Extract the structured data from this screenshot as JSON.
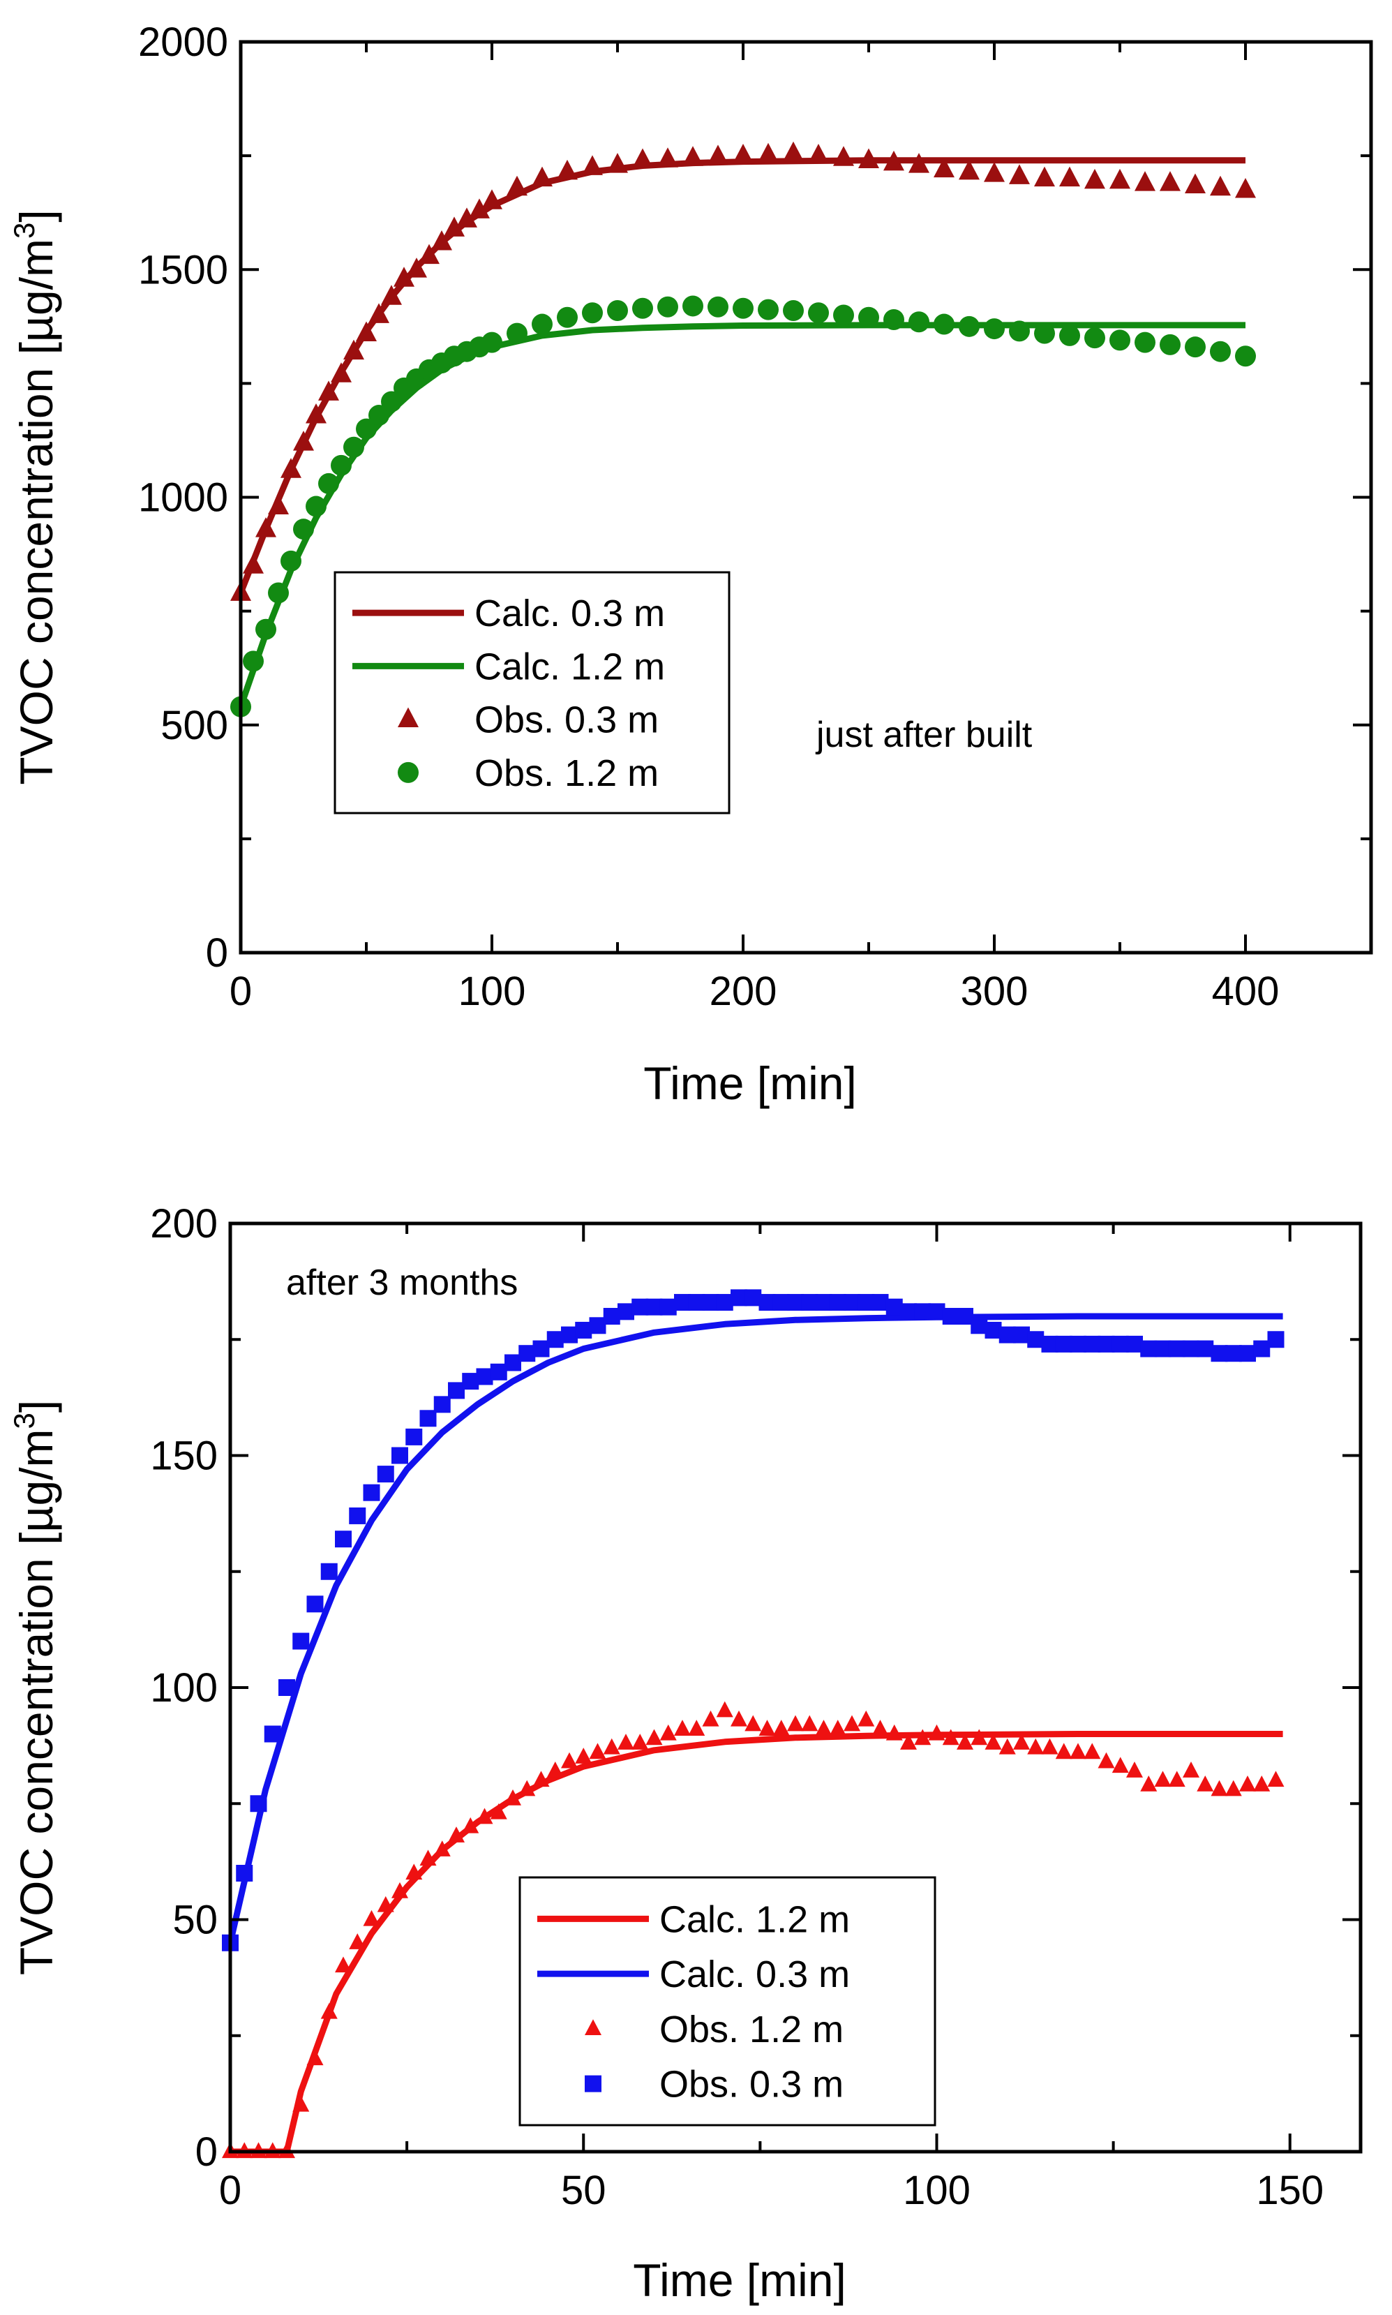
{
  "chart_data": [
    {
      "type": "line",
      "annotation": "just after built",
      "xlabel": "Time [min]",
      "ylabel": "TVOC concentration [µg/m",
      "ylabel_sup": "3",
      "ylabel_close": "]",
      "xlim": [
        0,
        450
      ],
      "ylim": [
        0,
        2000
      ],
      "xticks": [
        0,
        100,
        200,
        300,
        400
      ],
      "xticklabels": [
        "0",
        "100",
        "200",
        "300",
        "400"
      ],
      "yticks": [
        0,
        500,
        1000,
        1500,
        2000
      ],
      "yticklabels": [
        "0",
        "500",
        "1000",
        "1500",
        "2000"
      ],
      "legend_position": "center-left",
      "legend": [
        {
          "label": "Calc. 0.3 m",
          "kind": "line",
          "color": "#9b0f0f"
        },
        {
          "label": "Calc. 1.2 m",
          "kind": "line",
          "color": "#128a12"
        },
        {
          "label": "Obs.  0.3 m",
          "kind": "triangle",
          "color": "#9b0f0f"
        },
        {
          "label": "Obs.  1.2 m",
          "kind": "circle",
          "color": "#128a12"
        }
      ],
      "series": [
        {
          "name": "Calc. 0.3 m",
          "kind": "line",
          "color": "#9b0f0f",
          "x": [
            0,
            10,
            20,
            30,
            40,
            50,
            60,
            70,
            80,
            90,
            100,
            120,
            140,
            160,
            180,
            200,
            250,
            300,
            350,
            400
          ],
          "y": [
            790,
            930,
            1060,
            1175,
            1275,
            1365,
            1440,
            1505,
            1560,
            1605,
            1640,
            1690,
            1715,
            1728,
            1734,
            1737,
            1740,
            1740,
            1740,
            1740
          ]
        },
        {
          "name": "Calc. 1.2 m",
          "kind": "line",
          "color": "#128a12",
          "x": [
            0,
            10,
            20,
            30,
            40,
            50,
            60,
            70,
            80,
            90,
            100,
            120,
            140,
            160,
            180,
            200,
            250,
            300,
            350,
            400
          ],
          "y": [
            540,
            700,
            840,
            955,
            1050,
            1130,
            1190,
            1240,
            1280,
            1308,
            1330,
            1355,
            1367,
            1372,
            1375,
            1377,
            1378,
            1378,
            1378,
            1378
          ]
        },
        {
          "name": "Obs. 0.3 m",
          "kind": "triangle",
          "color": "#9b0f0f",
          "x": [
            0,
            5,
            10,
            15,
            20,
            25,
            30,
            35,
            40,
            45,
            50,
            55,
            60,
            65,
            70,
            75,
            80,
            85,
            90,
            95,
            100,
            110,
            120,
            130,
            140,
            150,
            160,
            170,
            180,
            190,
            200,
            210,
            220,
            230,
            240,
            250,
            260,
            270,
            280,
            290,
            300,
            310,
            320,
            330,
            340,
            350,
            360,
            370,
            380,
            390,
            400
          ],
          "y": [
            790,
            850,
            930,
            980,
            1060,
            1120,
            1180,
            1230,
            1270,
            1320,
            1360,
            1400,
            1440,
            1480,
            1500,
            1530,
            1560,
            1590,
            1610,
            1630,
            1650,
            1680,
            1700,
            1715,
            1725,
            1730,
            1740,
            1742,
            1745,
            1748,
            1750,
            1752,
            1755,
            1750,
            1745,
            1740,
            1735,
            1730,
            1720,
            1715,
            1710,
            1705,
            1700,
            1700,
            1695,
            1695,
            1690,
            1690,
            1685,
            1680,
            1675
          ]
        },
        {
          "name": "Obs. 1.2 m",
          "kind": "circle",
          "color": "#128a12",
          "x": [
            0,
            5,
            10,
            15,
            20,
            25,
            30,
            35,
            40,
            45,
            50,
            55,
            60,
            65,
            70,
            75,
            80,
            85,
            90,
            95,
            100,
            110,
            120,
            130,
            140,
            150,
            160,
            170,
            180,
            190,
            200,
            210,
            220,
            230,
            240,
            250,
            260,
            270,
            280,
            290,
            300,
            310,
            320,
            330,
            340,
            350,
            360,
            370,
            380,
            390,
            400
          ],
          "y": [
            540,
            640,
            710,
            790,
            860,
            930,
            980,
            1030,
            1070,
            1110,
            1150,
            1180,
            1210,
            1240,
            1260,
            1280,
            1295,
            1310,
            1320,
            1330,
            1340,
            1360,
            1380,
            1395,
            1405,
            1410,
            1415,
            1418,
            1420,
            1418,
            1415,
            1412,
            1410,
            1405,
            1400,
            1395,
            1390,
            1385,
            1380,
            1375,
            1370,
            1365,
            1360,
            1355,
            1350,
            1345,
            1340,
            1335,
            1330,
            1320,
            1310
          ]
        }
      ]
    },
    {
      "type": "line",
      "annotation": "after 3 months",
      "xlabel": "Time [min]",
      "ylabel": "TVOC concentration [µg/m",
      "ylabel_sup": "3",
      "ylabel_close": "]",
      "xlim": [
        0,
        160
      ],
      "ylim": [
        0,
        200
      ],
      "xticks": [
        0,
        50,
        100,
        150
      ],
      "xticklabels": [
        "0",
        "50",
        "100",
        "150"
      ],
      "yticks": [
        0,
        50,
        100,
        150,
        200
      ],
      "yticklabels": [
        "0",
        "50",
        "100",
        "150",
        "200"
      ],
      "legend_position": "bottom-center",
      "legend": [
        {
          "label": "Calc. 1.2 m",
          "kind": "line",
          "color": "#ee1111"
        },
        {
          "label": "Calc. 0.3 m",
          "kind": "line",
          "color": "#1111ee"
        },
        {
          "label": "Obs. 1.2 m",
          "kind": "triangle",
          "color": "#ee1111"
        },
        {
          "label": "Obs. 0.3 m",
          "kind": "square",
          "color": "#1111ee"
        }
      ],
      "series": [
        {
          "name": "Calc. 1.2 m",
          "kind": "line",
          "color": "#ee1111",
          "x": [
            0,
            8,
            10,
            15,
            20,
            25,
            30,
            35,
            40,
            45,
            50,
            60,
            70,
            80,
            90,
            100,
            120,
            149
          ],
          "y": [
            0,
            0,
            13,
            34,
            47,
            57,
            65,
            71,
            76,
            80,
            83,
            86.5,
            88.3,
            89.2,
            89.6,
            89.8,
            90,
            90
          ]
        },
        {
          "name": "Calc. 0.3 m",
          "kind": "line",
          "color": "#1111ee",
          "x": [
            0,
            5,
            10,
            15,
            20,
            25,
            30,
            35,
            40,
            45,
            50,
            60,
            70,
            80,
            90,
            100,
            120,
            149
          ],
          "y": [
            45,
            78,
            103,
            122,
            136,
            147,
            155,
            161,
            166,
            170,
            173,
            176.5,
            178.3,
            179.2,
            179.6,
            179.8,
            180,
            180
          ]
        },
        {
          "name": "Obs. 1.2 m",
          "kind": "triangle",
          "color": "#ee1111",
          "x": [
            0,
            2,
            4,
            6,
            8,
            10,
            12,
            14,
            16,
            18,
            20,
            22,
            24,
            26,
            28,
            30,
            32,
            34,
            36,
            38,
            40,
            42,
            44,
            46,
            48,
            50,
            52,
            54,
            56,
            58,
            60,
            62,
            64,
            66,
            68,
            70,
            72,
            74,
            76,
            78,
            80,
            82,
            84,
            86,
            88,
            90,
            92,
            94,
            96,
            98,
            100,
            102,
            104,
            106,
            108,
            110,
            112,
            114,
            116,
            118,
            120,
            122,
            124,
            126,
            128,
            130,
            132,
            134,
            136,
            138,
            140,
            142,
            144,
            146,
            148
          ],
          "y": [
            0,
            0,
            0,
            0,
            0,
            10,
            20,
            30,
            40,
            45,
            50,
            53,
            56,
            60,
            63,
            65,
            68,
            70,
            72,
            73,
            76,
            78,
            80,
            82,
            84,
            85,
            86,
            87,
            88,
            88,
            89,
            90,
            91,
            91,
            93,
            95,
            93,
            92,
            91,
            91,
            92,
            92,
            91,
            91,
            92,
            93,
            91,
            90,
            88,
            89,
            90,
            89,
            88,
            89,
            88,
            87,
            88,
            87,
            87,
            86,
            86,
            86,
            84,
            83,
            82,
            79,
            80,
            80,
            82,
            79,
            78,
            78,
            79,
            79,
            80
          ]
        },
        {
          "name": "Obs. 0.3 m",
          "kind": "square",
          "color": "#1111ee",
          "x": [
            0,
            2,
            4,
            6,
            8,
            10,
            12,
            14,
            16,
            18,
            20,
            22,
            24,
            26,
            28,
            30,
            32,
            34,
            36,
            38,
            40,
            42,
            44,
            46,
            48,
            50,
            52,
            54,
            56,
            58,
            60,
            62,
            64,
            66,
            68,
            70,
            72,
            74,
            76,
            78,
            80,
            82,
            84,
            86,
            88,
            90,
            92,
            94,
            96,
            98,
            100,
            102,
            104,
            106,
            108,
            110,
            112,
            114,
            116,
            118,
            120,
            122,
            124,
            126,
            128,
            130,
            132,
            134,
            136,
            138,
            140,
            142,
            144,
            146,
            148
          ],
          "y": [
            45,
            60,
            75,
            90,
            100,
            110,
            118,
            125,
            132,
            137,
            142,
            146,
            150,
            154,
            158,
            161,
            164,
            166,
            167,
            168,
            170,
            172,
            173,
            175,
            176,
            177,
            178,
            180,
            181,
            182,
            182,
            182,
            183,
            183,
            183,
            183,
            184,
            184,
            183,
            183,
            183,
            183,
            183,
            183,
            183,
            183,
            183,
            182,
            181,
            181,
            181,
            180,
            180,
            178,
            177,
            176,
            176,
            175,
            174,
            174,
            174,
            174,
            174,
            174,
            174,
            173,
            173,
            173,
            173,
            173,
            172,
            172,
            172,
            173,
            175
          ]
        }
      ]
    }
  ]
}
